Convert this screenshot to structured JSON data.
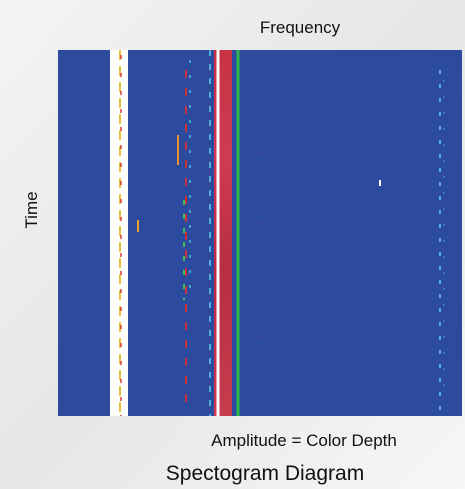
{
  "header": {
    "title": "Spectogram Diagram"
  },
  "axes": {
    "x_label": "Frequency",
    "y_label": "Time"
  },
  "caption": "Amplitude = Color Depth"
}
